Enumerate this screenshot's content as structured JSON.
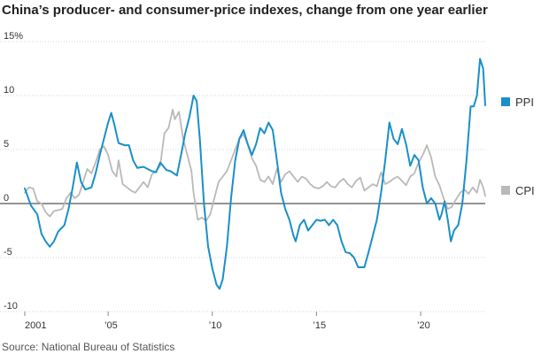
{
  "chart_data": {
    "type": "line",
    "title": "China’s producer- and consumer-price indexes, change from one year earlier",
    "source": "Source: National Bureau of Statistics",
    "y_ticks": [
      {
        "value": 15,
        "label": "15%"
      },
      {
        "value": 10,
        "label": "10"
      },
      {
        "value": 5,
        "label": "5"
      },
      {
        "value": 0,
        "label": "0"
      },
      {
        "value": -5,
        "label": "-5"
      },
      {
        "value": -10,
        "label": "-10"
      }
    ],
    "x_ticks": [
      {
        "value": 2001,
        "label": "2001"
      },
      {
        "value": 2005,
        "label": "’05"
      },
      {
        "value": 2010,
        "label": "’10"
      },
      {
        "value": 2015,
        "label": "’15"
      },
      {
        "value": 2020,
        "label": "’20"
      }
    ],
    "ylim": [
      -10,
      15
    ],
    "xlim": [
      2001,
      2022.3
    ],
    "grid": true,
    "legend_placement": "right",
    "series": [
      {
        "name": "PPI",
        "color": "#1a8fc9",
        "points": [
          [
            2001.0,
            1.4
          ],
          [
            2001.3,
            -0.2
          ],
          [
            2001.6,
            -1.0
          ],
          [
            2001.8,
            -2.8
          ],
          [
            2002.0,
            -3.5
          ],
          [
            2002.2,
            -4.0
          ],
          [
            2002.4,
            -3.5
          ],
          [
            2002.6,
            -2.6
          ],
          [
            2002.9,
            -2.0
          ],
          [
            2003.1,
            -0.5
          ],
          [
            2003.3,
            1.5
          ],
          [
            2003.5,
            3.8
          ],
          [
            2003.7,
            2.0
          ],
          [
            2003.9,
            1.3
          ],
          [
            2004.2,
            1.5
          ],
          [
            2004.4,
            2.8
          ],
          [
            2004.6,
            4.5
          ],
          [
            2004.8,
            6.0
          ],
          [
            2005.0,
            7.5
          ],
          [
            2005.15,
            8.4
          ],
          [
            2005.3,
            7.3
          ],
          [
            2005.5,
            5.6
          ],
          [
            2005.8,
            5.4
          ],
          [
            2006.0,
            5.4
          ],
          [
            2006.2,
            4.0
          ],
          [
            2006.4,
            3.3
          ],
          [
            2006.7,
            3.4
          ],
          [
            2006.9,
            3.2
          ],
          [
            2007.1,
            3.0
          ],
          [
            2007.3,
            2.9
          ],
          [
            2007.5,
            3.8
          ],
          [
            2007.8,
            3.1
          ],
          [
            2008.0,
            3.0
          ],
          [
            2008.3,
            2.6
          ],
          [
            2008.5,
            4.5
          ],
          [
            2008.7,
            6.5
          ],
          [
            2008.9,
            8.0
          ],
          [
            2009.1,
            10.0
          ],
          [
            2009.25,
            9.5
          ],
          [
            2009.4,
            6.0
          ],
          [
            2009.6,
            0.0
          ],
          [
            2009.8,
            -4.0
          ],
          [
            2010.0,
            -6.0
          ],
          [
            2010.2,
            -7.5
          ],
          [
            2010.35,
            -7.9
          ],
          [
            2010.5,
            -7.0
          ],
          [
            2010.7,
            -4.0
          ],
          [
            2010.9,
            0.5
          ],
          [
            2011.1,
            4.0
          ],
          [
            2011.3,
            6.0
          ],
          [
            2011.5,
            6.8
          ],
          [
            2011.7,
            5.5
          ],
          [
            2011.9,
            4.5
          ],
          [
            2012.1,
            5.5
          ],
          [
            2012.3,
            7.0
          ],
          [
            2012.5,
            6.5
          ],
          [
            2012.7,
            7.5
          ],
          [
            2012.9,
            6.8
          ],
          [
            2013.1,
            4.0
          ],
          [
            2013.3,
            1.0
          ],
          [
            2013.5,
            -0.5
          ],
          [
            2013.7,
            -1.5
          ],
          [
            2013.9,
            -3.0
          ],
          [
            2014.0,
            -3.5
          ],
          [
            2014.2,
            -2.0
          ],
          [
            2014.4,
            -1.5
          ],
          [
            2014.6,
            -2.5
          ],
          [
            2014.8,
            -2.0
          ],
          [
            2015.0,
            -1.5
          ],
          [
            2015.2,
            -1.6
          ],
          [
            2015.4,
            -1.5
          ],
          [
            2015.6,
            -2.0
          ],
          [
            2015.8,
            -1.5
          ],
          [
            2016.0,
            -2.0
          ],
          [
            2016.2,
            -3.5
          ],
          [
            2016.4,
            -4.5
          ],
          [
            2016.6,
            -4.6
          ],
          [
            2016.8,
            -5.0
          ],
          [
            2017.0,
            -5.9
          ],
          [
            2017.3,
            -5.9
          ],
          [
            2017.5,
            -4.5
          ],
          [
            2017.7,
            -3.0
          ],
          [
            2017.9,
            -1.5
          ],
          [
            2018.1,
            1.0
          ],
          [
            2018.3,
            4.0
          ],
          [
            2018.5,
            7.5
          ],
          [
            2018.7,
            6.0
          ],
          [
            2018.9,
            5.5
          ],
          [
            2019.1,
            6.9
          ],
          [
            2019.3,
            5.5
          ],
          [
            2019.5,
            3.5
          ],
          [
            2019.7,
            4.5
          ],
          [
            2019.9,
            4.0
          ],
          [
            2020.1,
            1.5
          ],
          [
            2020.3,
            0.0
          ],
          [
            2020.5,
            0.5
          ],
          [
            2020.7,
            0.0
          ],
          [
            2020.9,
            -1.5
          ],
          [
            2021.0,
            -1.0
          ],
          [
            2021.15,
            0.2
          ],
          [
            2021.3,
            -1.5
          ],
          [
            2021.45,
            -3.5
          ],
          [
            2021.6,
            -2.5
          ],
          [
            2021.8,
            -2.0
          ],
          [
            2022.0,
            0.0
          ],
          [
            2022.2,
            4.0
          ],
          [
            2022.4,
            9.0
          ],
          [
            2022.55,
            9.0
          ],
          [
            2022.7,
            10.0
          ],
          [
            2022.85,
            13.4
          ],
          [
            2023.0,
            12.5
          ],
          [
            2023.1,
            9.1
          ]
        ]
      },
      {
        "name": "CPI",
        "color": "#b9b9b9",
        "points": [
          [
            2001.0,
            1.0
          ],
          [
            2001.2,
            1.5
          ],
          [
            2001.4,
            1.4
          ],
          [
            2001.6,
            0.2
          ],
          [
            2001.8,
            0.0
          ],
          [
            2002.0,
            -0.8
          ],
          [
            2002.2,
            -1.2
          ],
          [
            2002.4,
            -0.7
          ],
          [
            2002.6,
            -0.6
          ],
          [
            2002.8,
            -0.5
          ],
          [
            2003.0,
            0.5
          ],
          [
            2003.2,
            1.0
          ],
          [
            2003.4,
            0.5
          ],
          [
            2003.6,
            0.8
          ],
          [
            2003.8,
            2.0
          ],
          [
            2004.0,
            3.2
          ],
          [
            2004.2,
            2.8
          ],
          [
            2004.4,
            3.8
          ],
          [
            2004.6,
            5.0
          ],
          [
            2004.8,
            5.3
          ],
          [
            2005.0,
            4.5
          ],
          [
            2005.2,
            3.0
          ],
          [
            2005.4,
            2.5
          ],
          [
            2005.5,
            4.0
          ],
          [
            2005.7,
            1.8
          ],
          [
            2005.9,
            1.5
          ],
          [
            2006.1,
            1.2
          ],
          [
            2006.3,
            1.0
          ],
          [
            2006.5,
            1.5
          ],
          [
            2006.7,
            2.0
          ],
          [
            2006.9,
            1.5
          ],
          [
            2007.1,
            2.7
          ],
          [
            2007.3,
            3.0
          ],
          [
            2007.5,
            3.5
          ],
          [
            2007.7,
            6.5
          ],
          [
            2007.9,
            7.0
          ],
          [
            2008.1,
            8.7
          ],
          [
            2008.2,
            7.8
          ],
          [
            2008.4,
            8.5
          ],
          [
            2008.6,
            6.0
          ],
          [
            2008.8,
            4.5
          ],
          [
            2009.0,
            3.0
          ],
          [
            2009.1,
            1.0
          ],
          [
            2009.3,
            -1.5
          ],
          [
            2009.5,
            -1.3
          ],
          [
            2009.7,
            -1.6
          ],
          [
            2009.9,
            -1.0
          ],
          [
            2010.1,
            0.5
          ],
          [
            2010.3,
            2.0
          ],
          [
            2010.5,
            2.5
          ],
          [
            2010.7,
            3.0
          ],
          [
            2010.9,
            4.0
          ],
          [
            2011.1,
            5.0
          ],
          [
            2011.3,
            6.0
          ],
          [
            2011.5,
            6.4
          ],
          [
            2011.7,
            5.5
          ],
          [
            2011.9,
            4.2
          ],
          [
            2012.1,
            3.5
          ],
          [
            2012.3,
            2.2
          ],
          [
            2012.5,
            2.0
          ],
          [
            2012.7,
            2.5
          ],
          [
            2012.9,
            1.8
          ],
          [
            2013.1,
            3.2
          ],
          [
            2013.3,
            2.0
          ],
          [
            2013.5,
            2.7
          ],
          [
            2013.7,
            3.0
          ],
          [
            2013.9,
            2.5
          ],
          [
            2014.1,
            2.0
          ],
          [
            2014.3,
            2.5
          ],
          [
            2014.5,
            2.3
          ],
          [
            2014.7,
            1.8
          ],
          [
            2014.9,
            1.5
          ],
          [
            2015.1,
            1.4
          ],
          [
            2015.3,
            1.6
          ],
          [
            2015.5,
            2.0
          ],
          [
            2015.7,
            1.6
          ],
          [
            2015.9,
            1.5
          ],
          [
            2016.1,
            2.0
          ],
          [
            2016.3,
            2.3
          ],
          [
            2016.5,
            1.8
          ],
          [
            2016.7,
            1.5
          ],
          [
            2016.9,
            2.1
          ],
          [
            2017.1,
            2.4
          ],
          [
            2017.3,
            1.2
          ],
          [
            2017.5,
            1.5
          ],
          [
            2017.7,
            1.8
          ],
          [
            2017.9,
            1.6
          ],
          [
            2018.1,
            2.9
          ],
          [
            2018.3,
            1.8
          ],
          [
            2018.5,
            2.0
          ],
          [
            2018.7,
            2.3
          ],
          [
            2018.9,
            2.5
          ],
          [
            2019.1,
            2.1
          ],
          [
            2019.3,
            1.7
          ],
          [
            2019.5,
            2.5
          ],
          [
            2019.7,
            2.8
          ],
          [
            2019.9,
            3.8
          ],
          [
            2020.1,
            4.5
          ],
          [
            2020.3,
            5.4
          ],
          [
            2020.5,
            4.3
          ],
          [
            2020.7,
            2.5
          ],
          [
            2020.9,
            1.7
          ],
          [
            2021.1,
            0.5
          ],
          [
            2021.3,
            -0.5
          ],
          [
            2021.5,
            -0.3
          ],
          [
            2021.7,
            0.4
          ],
          [
            2021.9,
            1.0
          ],
          [
            2022.1,
            1.3
          ],
          [
            2022.3,
            0.9
          ],
          [
            2022.5,
            1.5
          ],
          [
            2022.7,
            1.0
          ],
          [
            2022.85,
            2.2
          ],
          [
            2023.0,
            1.5
          ],
          [
            2023.1,
            0.7
          ]
        ]
      }
    ]
  }
}
